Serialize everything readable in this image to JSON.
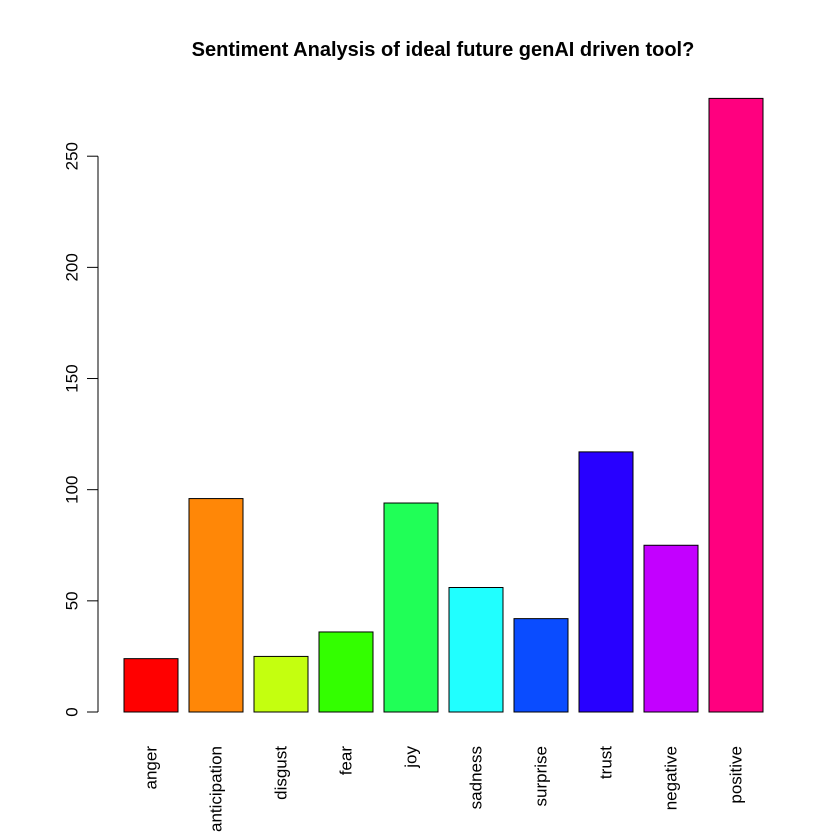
{
  "chart_data": {
    "type": "bar",
    "title": "Sentiment Analysis of ideal future genAI driven tool?",
    "xlabel": "",
    "ylabel": "",
    "categories": [
      "anger",
      "anticipation",
      "disgust",
      "fear",
      "joy",
      "sadness",
      "surprise",
      "trust",
      "negative",
      "positive"
    ],
    "values": [
      24,
      96,
      25,
      36,
      94,
      56,
      42,
      117,
      75,
      276
    ],
    "colors": [
      "#FF0000",
      "#FF8707",
      "#C4FF0F",
      "#33FF00",
      "#20FF57",
      "#20FFFF",
      "#0A4CFF",
      "#2800FF",
      "#C300FF",
      "#FF007F"
    ],
    "yticks": [
      0,
      50,
      100,
      150,
      200,
      250
    ],
    "ylim": [
      0,
      276
    ],
    "grid": false,
    "legend": "none"
  }
}
